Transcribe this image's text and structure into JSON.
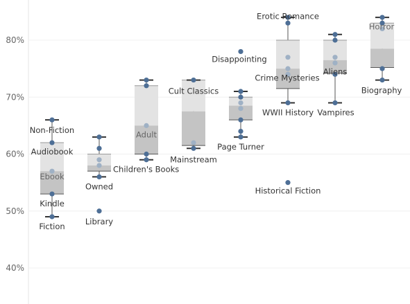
{
  "chart_data": {
    "type": "box-plot",
    "y_ticks": [
      "40%",
      "50%",
      "60%",
      "70%",
      "80%"
    ],
    "ylim": [
      36,
      88
    ],
    "grid": true,
    "groups": [
      {
        "box": {
          "min": 49,
          "q1": 53,
          "median": 57,
          "q3": 62,
          "max": 66
        },
        "points": [
          {
            "label": "Non-Fiction",
            "value": 66
          },
          {
            "label": "Audiobook",
            "value": 62
          },
          {
            "label": "Ebook",
            "value": 57
          },
          {
            "label": "Kindle",
            "value": 53
          },
          {
            "label": "Fiction",
            "value": 49
          }
        ]
      },
      {
        "box": {
          "min": 56,
          "q1": 57,
          "median": 58,
          "q3": 60,
          "max": 63
        },
        "points": [
          {
            "label": "",
            "value": 63
          },
          {
            "label": "",
            "value": 61
          },
          {
            "label": "Children's Books",
            "value": 59
          },
          {
            "label": "",
            "value": 58
          },
          {
            "label": "Owned",
            "value": 56
          },
          {
            "label": "Library",
            "value": 50
          }
        ]
      },
      {
        "box": {
          "min": 59,
          "q1": 60,
          "median": 65,
          "q3": 72,
          "max": 73
        },
        "points": [
          {
            "label": "",
            "value": 73
          },
          {
            "label": "",
            "value": 72
          },
          {
            "label": "Adult",
            "value": 65
          },
          {
            "label": "",
            "value": 60
          },
          {
            "label": "",
            "value": 59
          }
        ]
      },
      {
        "box": {
          "min": 61,
          "q1": 61.5,
          "median": 67.5,
          "q3": 73,
          "max": 73
        },
        "points": [
          {
            "label": "Cult Classics",
            "value": 73
          },
          {
            "label": "",
            "value": 62
          },
          {
            "label": "Mainstream",
            "value": 61
          }
        ]
      },
      {
        "box": {
          "min": 63,
          "q1": 66,
          "median": 68.5,
          "q3": 70,
          "max": 71
        },
        "points": [
          {
            "label": "Disappointing",
            "value": 78
          },
          {
            "label": "",
            "value": 71
          },
          {
            "label": "",
            "value": 70
          },
          {
            "label": "",
            "value": 69
          },
          {
            "label": "",
            "value": 68
          },
          {
            "label": "",
            "value": 66
          },
          {
            "label": "",
            "value": 64
          },
          {
            "label": "Page Turner",
            "value": 63
          }
        ]
      },
      {
        "box": {
          "min": 69,
          "q1": 71.5,
          "median": 75,
          "q3": 80,
          "max": 84
        },
        "points": [
          {
            "label": "",
            "value": 84
          },
          {
            "label": "Erotic Romance",
            "value": 83
          },
          {
            "label": "",
            "value": 77
          },
          {
            "label": "",
            "value": 75
          },
          {
            "label": "Crime Mysteries",
            "value": 74
          },
          {
            "label": "WWII History",
            "value": 69
          },
          {
            "label": "Historical Fiction",
            "value": 55
          }
        ]
      },
      {
        "box": {
          "min": 69,
          "q1": 74.2,
          "median": 76.5,
          "q3": 80,
          "max": 81
        },
        "points": [
          {
            "label": "",
            "value": 81
          },
          {
            "label": "",
            "value": 80
          },
          {
            "label": "",
            "value": 77
          },
          {
            "label": "",
            "value": 76
          },
          {
            "label": "Aliens",
            "value": 74
          },
          {
            "label": "Vampires",
            "value": 69
          }
        ]
      },
      {
        "box": {
          "min": 73,
          "q1": 75.2,
          "median": 78.5,
          "q3": 83,
          "max": 84
        },
        "points": [
          {
            "label": "",
            "value": 84
          },
          {
            "label": "",
            "value": 83
          },
          {
            "label": "Horror",
            "value": 82
          },
          {
            "label": "",
            "value": 75
          },
          {
            "label": "Biography",
            "value": 73
          }
        ]
      }
    ]
  }
}
